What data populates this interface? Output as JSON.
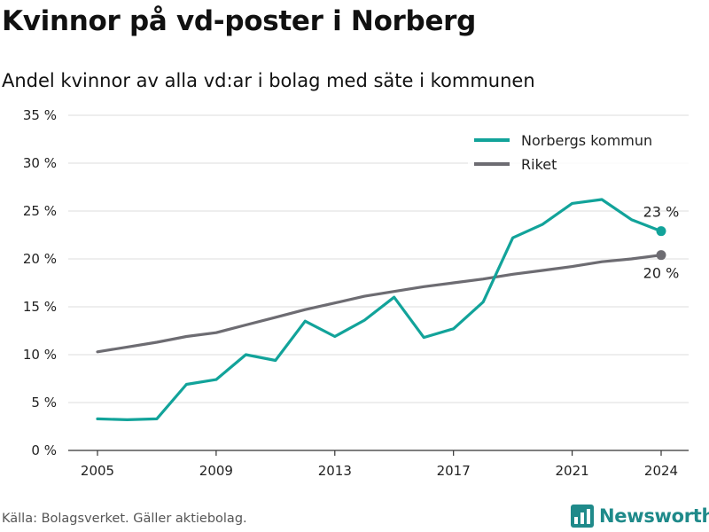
{
  "title": "Kvinnor på vd-poster i Norberg",
  "subtitle": "Andel kvinnor av alla vd:ar i bolag med säte i kommunen",
  "footer": "Källa: Bolagsverket. Gäller aktiebolag.",
  "logo": {
    "text": "Newsworthy",
    "icon": "bar-chart-logo-icon",
    "color": "#1f8a8a"
  },
  "chart_data": {
    "type": "line",
    "x_ticks": [
      "2005",
      "2009",
      "2013",
      "2017",
      "2021",
      "2024"
    ],
    "y_ticks": [
      "0 %",
      "5 %",
      "10 %",
      "15 %",
      "20 %",
      "25 %",
      "30 %",
      "35 %"
    ],
    "xlim": [
      2005,
      2024
    ],
    "ylim": [
      0,
      35
    ],
    "grid": true,
    "legend_position": "top-right",
    "x": [
      2005,
      2006,
      2007,
      2008,
      2009,
      2010,
      2011,
      2012,
      2013,
      2014,
      2015,
      2016,
      2017,
      2018,
      2019,
      2020,
      2021,
      2022,
      2023,
      2024
    ],
    "series": [
      {
        "name": "Norbergs kommun",
        "color": "#12a39a",
        "values": [
          3.3,
          3.2,
          3.3,
          6.9,
          7.4,
          10.0,
          9.4,
          13.5,
          11.9,
          13.6,
          16.0,
          11.8,
          12.7,
          15.5,
          22.2,
          23.6,
          25.8,
          26.2,
          24.1,
          22.9
        ],
        "end_label": "23 %"
      },
      {
        "name": "Riket",
        "color": "#6d6c72",
        "values": [
          10.3,
          10.8,
          11.3,
          11.9,
          12.3,
          13.1,
          13.9,
          14.7,
          15.4,
          16.1,
          16.6,
          17.1,
          17.5,
          17.9,
          18.4,
          18.8,
          19.2,
          19.7,
          20.0,
          20.4
        ],
        "end_label": "20 %"
      }
    ]
  }
}
